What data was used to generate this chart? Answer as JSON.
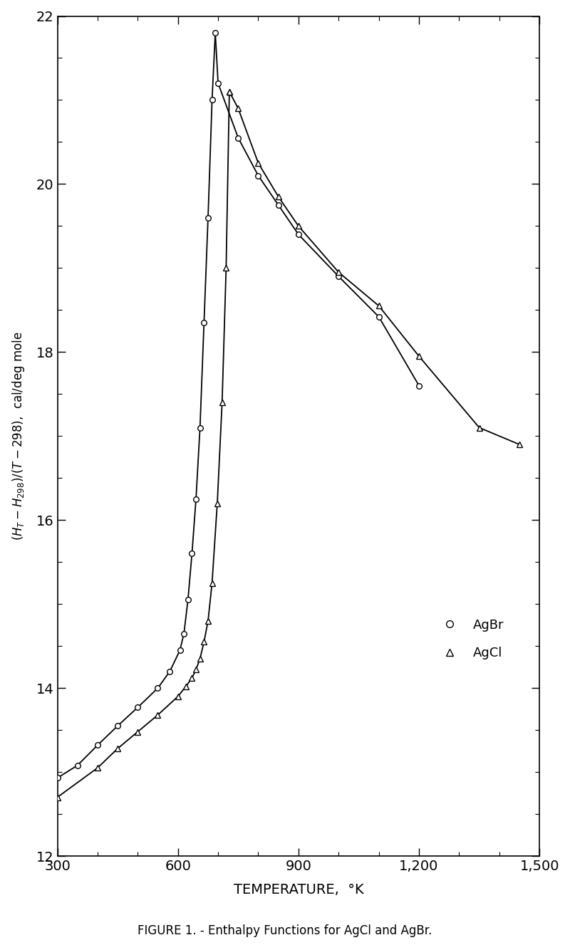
{
  "title": "FIGURE 1. - Enthalpy Functions for AgCl and AgBr.",
  "xlabel": "TEMPERATURE,  °K",
  "ylabel": "(H$_T$-H$_{298}$)/(T-298),  cal/deg mole",
  "xlim": [
    300,
    1500
  ],
  "ylim": [
    12,
    22
  ],
  "xticks": [
    300,
    600,
    900,
    1200,
    1500
  ],
  "xtick_labels": [
    "300",
    "600",
    "900",
    "1,200",
    "1,500"
  ],
  "yticks": [
    12,
    14,
    16,
    18,
    20,
    22
  ],
  "AgBr_solid_T": [
    300,
    350,
    400,
    450,
    500,
    550,
    580,
    605,
    615,
    625,
    635,
    645,
    655,
    665,
    675,
    685,
    693
  ],
  "AgBr_solid_H": [
    12.93,
    13.08,
    13.32,
    13.55,
    13.77,
    14.0,
    14.2,
    14.45,
    14.65,
    15.05,
    15.6,
    16.25,
    17.1,
    18.35,
    19.6,
    21.0,
    21.8
  ],
  "AgBr_liquid_T": [
    700,
    750,
    800,
    850,
    900,
    1000,
    1100,
    1200
  ],
  "AgBr_liquid_H": [
    21.2,
    20.55,
    20.1,
    19.75,
    19.4,
    18.9,
    18.42,
    17.6
  ],
  "AgCl_solid_T": [
    300,
    400,
    450,
    500,
    550,
    600,
    620,
    635,
    645,
    655,
    665,
    675,
    685,
    698,
    710,
    720,
    728
  ],
  "AgCl_solid_H": [
    12.7,
    13.05,
    13.28,
    13.48,
    13.68,
    13.9,
    14.02,
    14.12,
    14.22,
    14.35,
    14.55,
    14.8,
    15.25,
    16.2,
    17.4,
    19.0,
    21.1
  ],
  "AgCl_liquid_T": [
    728,
    750,
    800,
    850,
    900,
    1000,
    1100,
    1200,
    1350,
    1450
  ],
  "AgCl_liquid_H": [
    21.1,
    20.9,
    20.25,
    19.85,
    19.5,
    18.95,
    18.55,
    17.95,
    17.1,
    16.9
  ],
  "bg_color": "#ffffff",
  "line_color": "#000000"
}
